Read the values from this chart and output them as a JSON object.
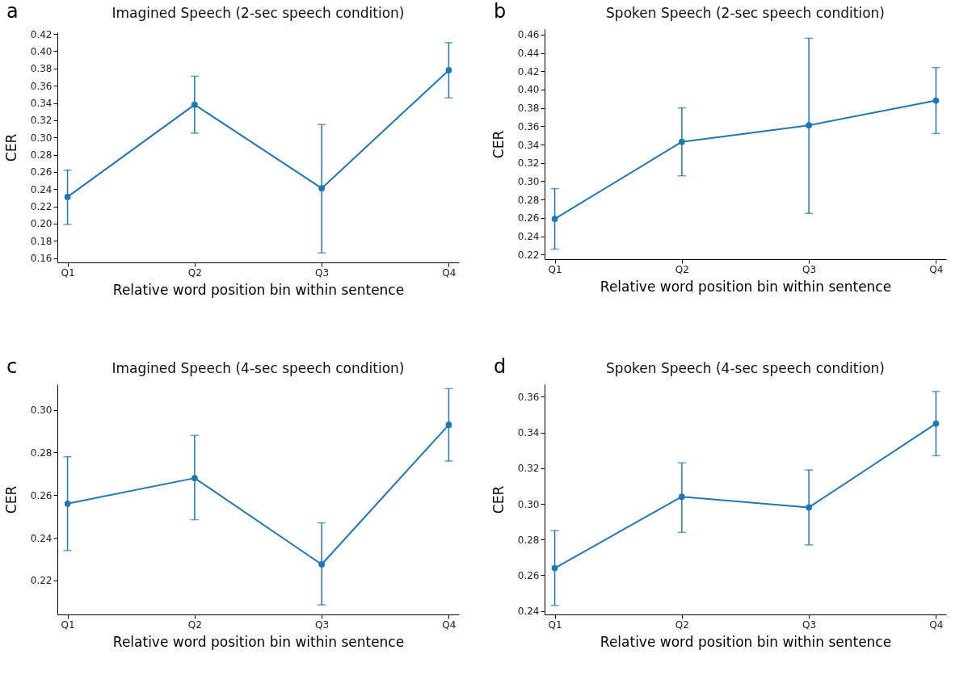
{
  "chart_data": [
    {
      "type": "line",
      "title": "Imagined Speech (2-sec speech condition)",
      "xlabel": "Relative word position bin within sentence",
      "ylabel": "CER",
      "annotations": [
        "a"
      ],
      "categories": [
        "Q1",
        "Q2",
        "Q3",
        "Q4"
      ],
      "marker": "circle",
      "line_style": "solid",
      "series": [
        {
          "color": "#1f77b4",
          "values": [
            0.231,
            0.338,
            0.241,
            0.378
          ],
          "errors": [
            [
              0.199,
              0.262
            ],
            [
              0.305,
              0.371
            ],
            [
              0.166,
              0.315
            ],
            [
              0.346,
              0.41
            ]
          ]
        }
      ],
      "ylim": [
        0.155,
        0.422
      ],
      "yticks": [
        0.16,
        0.18,
        {
          "value": 0.2,
          "label": "0.20"
        },
        0.22,
        0.24,
        0.26,
        0.28,
        {
          "value": 0.3,
          "label": "0.30"
        },
        0.32,
        0.34,
        0.36,
        0.38,
        {
          "value": 0.4,
          "label": "0.40"
        },
        0.42
      ]
    },
    {
      "type": "line",
      "title": "Spoken Speech (2-sec speech condition)",
      "xlabel": "Relative word position bin within sentence",
      "ylabel": "CER",
      "annotations": [
        "b"
      ],
      "categories": [
        "Q1",
        "Q2",
        "Q3",
        "Q4"
      ],
      "marker": "circle",
      "line_style": "solid",
      "series": [
        {
          "color": "#1f77b4",
          "values": [
            0.259,
            0.343,
            0.361,
            0.388
          ],
          "errors": [
            [
              0.226,
              0.292
            ],
            [
              0.306,
              0.38
            ],
            [
              0.265,
              0.456
            ],
            [
              0.352,
              0.424
            ]
          ]
        }
      ],
      "ylim": [
        0.215,
        0.466
      ],
      "yticks": [
        0.22,
        0.24,
        0.26,
        0.28,
        {
          "value": 0.3,
          "label": "0.30"
        },
        0.32,
        0.34,
        0.36,
        0.38,
        {
          "value": 0.4,
          "label": "0.40"
        },
        0.42,
        0.44,
        0.46
      ]
    },
    {
      "type": "line",
      "title": "Imagined Speech (4-sec speech condition)",
      "xlabel": "Relative word position bin within sentence",
      "ylabel": "CER",
      "annotations": [
        "c"
      ],
      "categories": [
        "Q1",
        "Q2",
        "Q3",
        "Q4"
      ],
      "marker": "circle",
      "line_style": "solid",
      "series": [
        {
          "color": "#1f77b4",
          "values": [
            0.256,
            0.268,
            0.2275,
            0.293
          ],
          "errors": [
            [
              0.234,
              0.278
            ],
            [
              0.2485,
              0.288
            ],
            [
              0.2085,
              0.247
            ],
            [
              0.276,
              0.31
            ]
          ]
        }
      ],
      "ylim": [
        0.204,
        0.312
      ],
      "yticks": [
        0.22,
        0.24,
        0.26,
        0.28,
        {
          "value": 0.3,
          "label": "0.30"
        }
      ]
    },
    {
      "type": "line",
      "title": "Spoken Speech (4-sec speech condition)",
      "xlabel": "Relative word position bin within sentence",
      "ylabel": "CER",
      "annotations": [
        "d"
      ],
      "categories": [
        "Q1",
        "Q2",
        "Q3",
        "Q4"
      ],
      "marker": "circle",
      "line_style": "solid",
      "series": [
        {
          "color": "#1f77b4",
          "values": [
            0.264,
            0.304,
            0.298,
            0.345
          ],
          "errors": [
            [
              0.243,
              0.285
            ],
            [
              0.284,
              0.323
            ],
            [
              0.277,
              0.319
            ],
            [
              0.327,
              0.363
            ]
          ]
        }
      ],
      "ylim": [
        0.238,
        0.367
      ],
      "yticks": [
        0.24,
        0.26,
        0.28,
        {
          "value": 0.3,
          "label": "0.30"
        },
        0.32,
        0.34,
        0.36
      ]
    }
  ]
}
